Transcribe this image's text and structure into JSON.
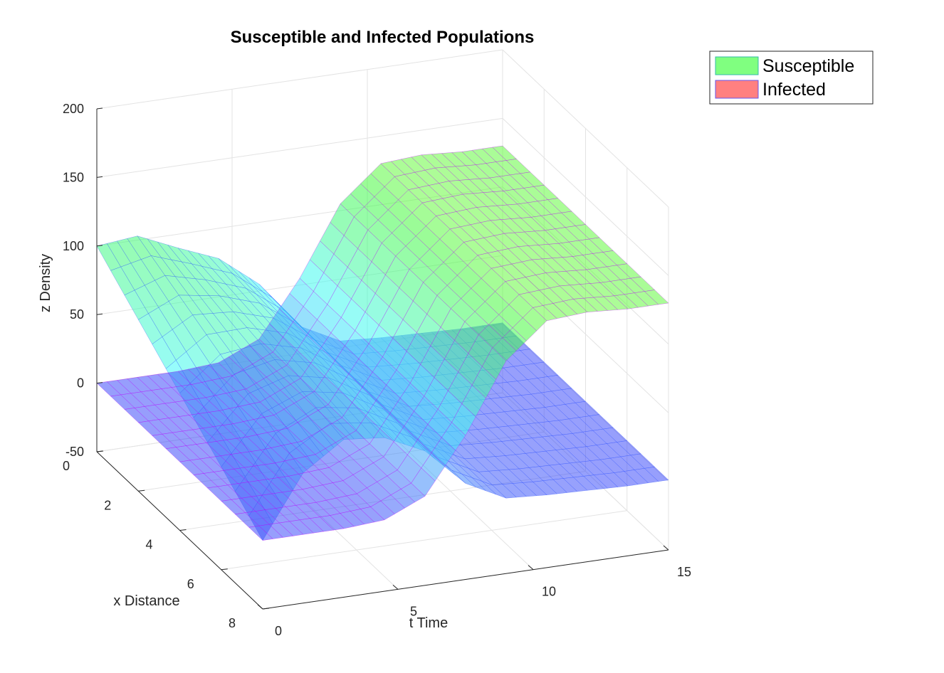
{
  "chart_data": {
    "type": "surface3d",
    "title": "Susceptible and Infected Populations",
    "xlabel": "t Time",
    "ylabel": "x Distance",
    "zlabel": "z Density",
    "t_ticks": [
      "0",
      "5",
      "10",
      "15"
    ],
    "x_ticks": [
      "0",
      "2",
      "4",
      "6",
      "8"
    ],
    "z_ticks": [
      "-50",
      "0",
      "50",
      "100",
      "150",
      "200"
    ],
    "tlim": [
      0,
      15
    ],
    "xlim": [
      0,
      8
    ],
    "zlim": [
      -50,
      200
    ],
    "grid": true,
    "legend_placement": "top-right",
    "series": [
      {
        "name": "Susceptible",
        "color": "#80ff80",
        "edge_color": "#3355ff",
        "t": [
          0,
          1.5,
          3,
          4.5,
          6,
          7.5,
          9,
          10.5,
          12,
          13.5,
          15
        ],
        "z_at_x0": [
          100,
          103,
          90,
          78,
          55,
          20,
          5,
          3,
          2,
          1,
          1
        ],
        "z_at_x8": [
          0,
          45,
          65,
          62,
          48,
          20,
          5,
          3,
          2,
          1,
          1
        ]
      },
      {
        "name": "Infected",
        "color": "#ff8080",
        "edge_color": "#c000ff",
        "t": [
          0,
          1.5,
          3,
          4.5,
          6,
          7.5,
          9,
          10.5,
          12,
          13.5,
          15
        ],
        "z_at_x0": [
          0,
          0,
          0,
          2,
          15,
          55,
          105,
          130,
          132,
          130,
          130
        ],
        "z_at_x8": [
          0,
          0,
          0,
          2,
          15,
          55,
          105,
          130,
          132,
          130,
          130
        ]
      }
    ]
  }
}
